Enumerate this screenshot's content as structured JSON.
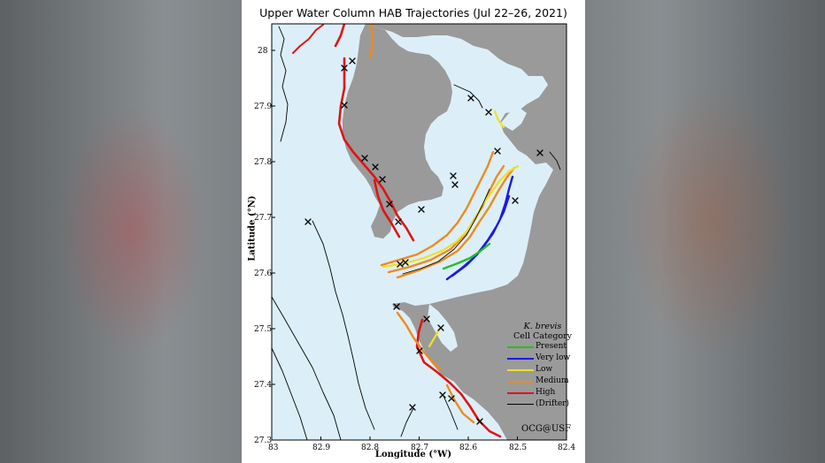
{
  "title": "Upper Water Column HAB Trajectories (Jul 22–26, 2021)",
  "axes": {
    "xlabel": "Longitude (°W)",
    "ylabel": "Latitude (°N)",
    "x_ticks": [
      "83",
      "82.9",
      "82.8",
      "82.7",
      "82.6",
      "82.5",
      "82.4"
    ],
    "y_ticks": [
      "28",
      "27.9",
      "27.8",
      "27.7",
      "27.6",
      "27.5",
      "27.4",
      "27.3"
    ]
  },
  "legend": {
    "title_species": "K. brevis",
    "title_rest": "Cell Category",
    "items": [
      {
        "label": "Present",
        "color": "#22c022"
      },
      {
        "label": "Very low",
        "color": "#1a1ae6"
      },
      {
        "label": "Low",
        "color": "#f0e020"
      },
      {
        "label": "Medium",
        "color": "#f08a1a"
      },
      {
        "label": "High",
        "color": "#e01414"
      },
      {
        "label": "(Drifter)",
        "color": "#000000"
      }
    ]
  },
  "credit": "OCG@USF",
  "colors": {
    "water": "#dceff8",
    "land": "#9a9a9a",
    "frame": "#000000"
  }
}
